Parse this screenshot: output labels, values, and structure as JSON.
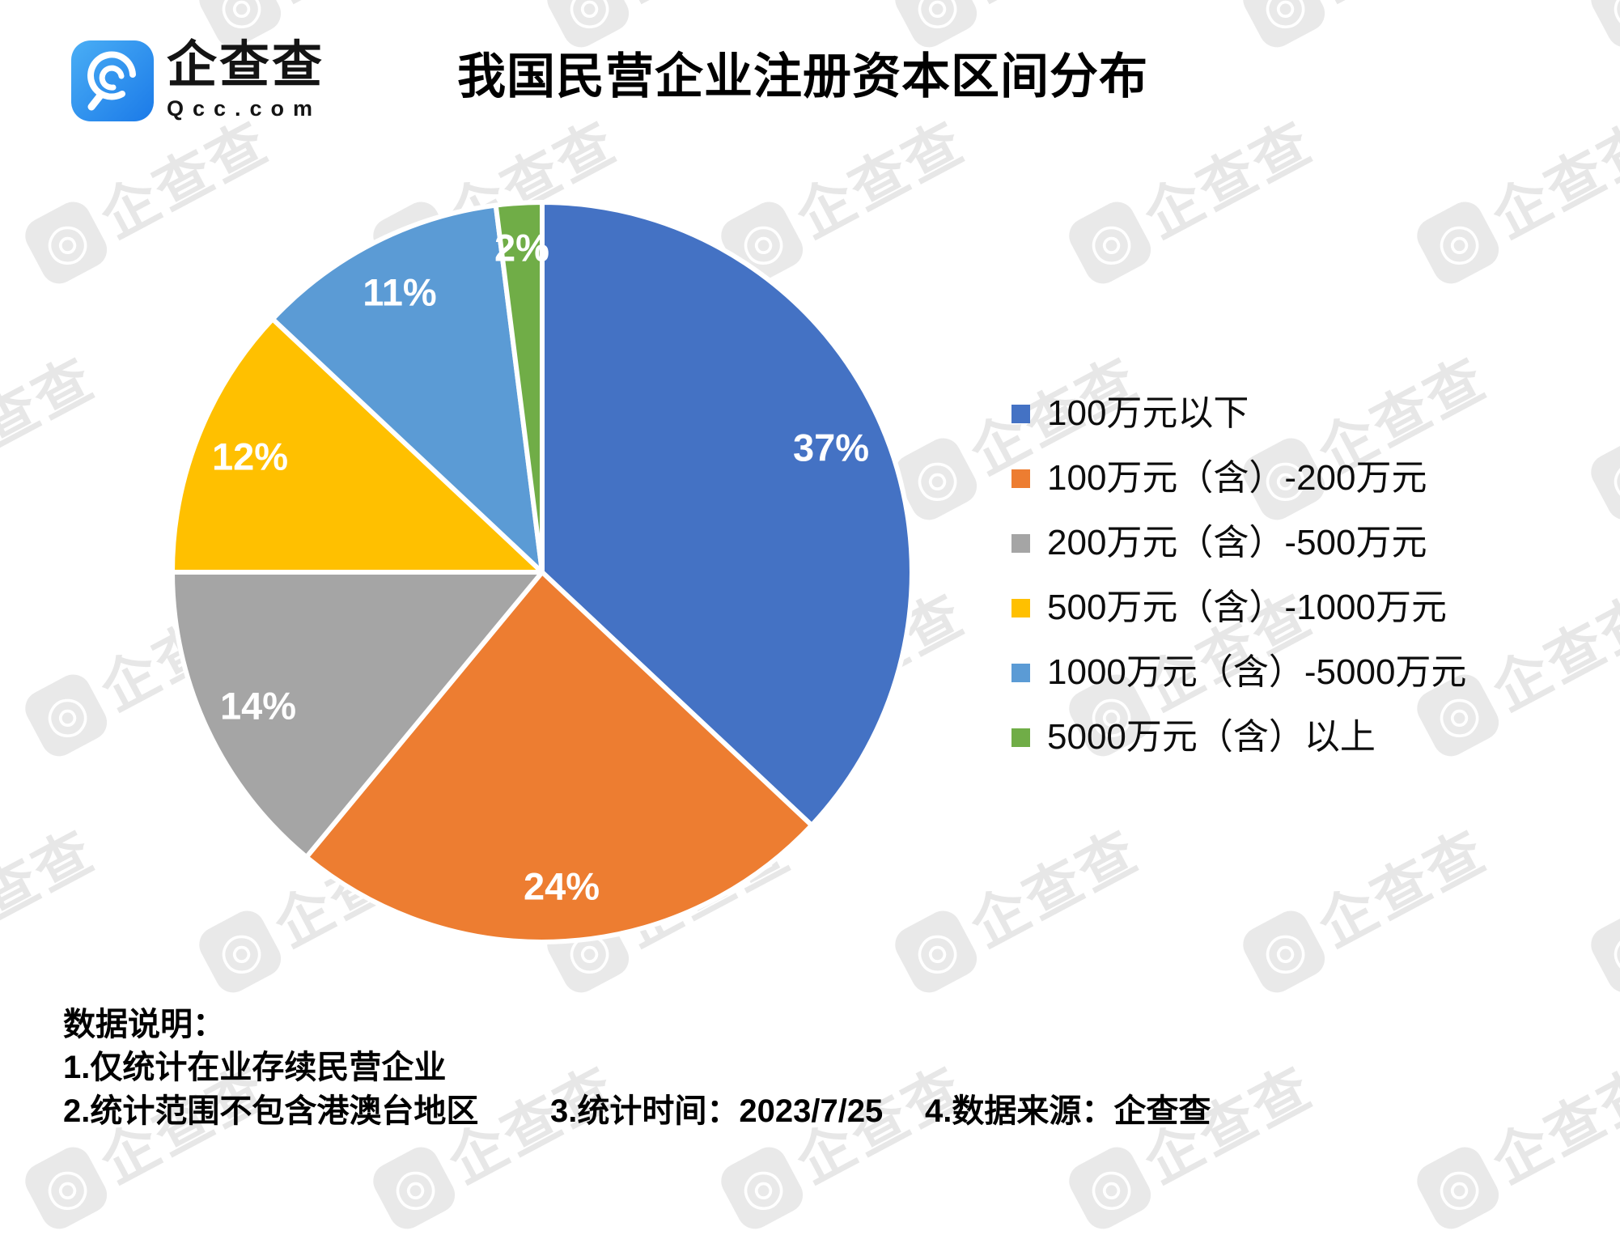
{
  "header": {
    "logo_text": "企查查",
    "logo_domain": "Qcc.com",
    "title": "我国民营企业注册资本区间分布"
  },
  "watermark": {
    "text": "企查查"
  },
  "chart_data": {
    "type": "pie",
    "title": "我国民营企业注册资本区间分布",
    "unit": "percent",
    "direction": "clockwise",
    "start_angle_deg": 0,
    "legend_position": "right",
    "data_label_color": "#FFFFFF",
    "slices": [
      {
        "label": "100万元以下",
        "value": 37,
        "color": "#4472C4"
      },
      {
        "label": "100万元（含）-200万元",
        "value": 24,
        "color": "#ED7D31"
      },
      {
        "label": "200万元（含）-500万元",
        "value": 14,
        "color": "#A5A5A5"
      },
      {
        "label": "500万元（含）-1000万元",
        "value": 12,
        "color": "#FFC000"
      },
      {
        "label": "1000万元（含）-5000万元",
        "value": 11,
        "color": "#5B9BD5"
      },
      {
        "label": "5000万元（含）以上",
        "value": 2,
        "color": "#70AD47"
      }
    ],
    "data_labels": [
      "37%",
      "24%",
      "14%",
      "12%",
      "11%",
      "2%"
    ]
  },
  "notes": {
    "heading": "数据说明：",
    "items": [
      "1.仅统计在业存续民营企业",
      "2.统计范围不包含港澳台地区",
      "3.统计时间：2023/7/25",
      "4.数据来源：企查查"
    ]
  }
}
